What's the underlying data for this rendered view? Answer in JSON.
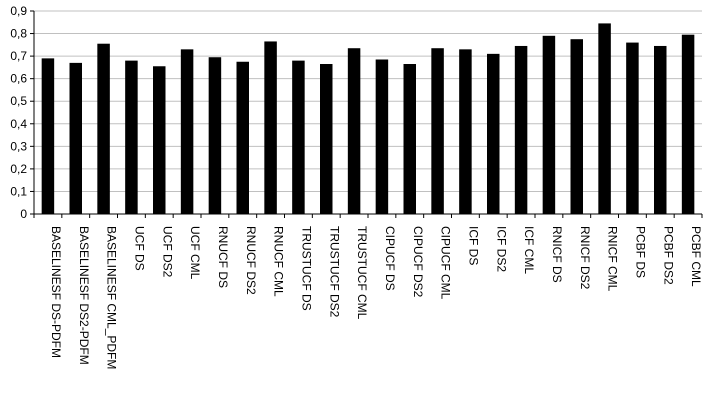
{
  "chart_data": {
    "type": "bar",
    "categories": [
      "BASELINESF DS-PDFM",
      "BASELINESF DS2-PDFM",
      "BASELINESF CML_PDFM",
      "UCF DS",
      "UCF DS2",
      "UCF CML",
      "RNUCF DS",
      "RNUCF DS2",
      "RNUCF CML",
      "TRUSTUCF DS",
      "TRUSTUCF DS2",
      "TRUSTUCF CML",
      "CIPUCF DS",
      "CIPUCF DS2",
      "CIPUCF CML",
      "ICF DS",
      "ICF DS2",
      "ICF CML",
      "RNICF DS",
      "RNICF DS2",
      "RNICF CML",
      "PCBF DS",
      "PCBF DS2",
      "PCBF CML"
    ],
    "values": [
      0.69,
      0.67,
      0.755,
      0.68,
      0.655,
      0.73,
      0.695,
      0.675,
      0.765,
      0.68,
      0.665,
      0.735,
      0.685,
      0.665,
      0.735,
      0.73,
      0.71,
      0.745,
      0.79,
      0.775,
      0.845,
      0.76,
      0.745,
      0.795
    ],
    "yticks": [
      "0",
      "0,1",
      "0,2",
      "0,3",
      "0,4",
      "0,5",
      "0,6",
      "0,7",
      "0,8",
      "0,9"
    ],
    "ylim": [
      0,
      0.9
    ],
    "grid": "horizontal",
    "legend": "none",
    "title": "",
    "xlabel": "",
    "ylabel": "",
    "bar_color": "#000000",
    "grid_color": "#c0c0c0"
  }
}
